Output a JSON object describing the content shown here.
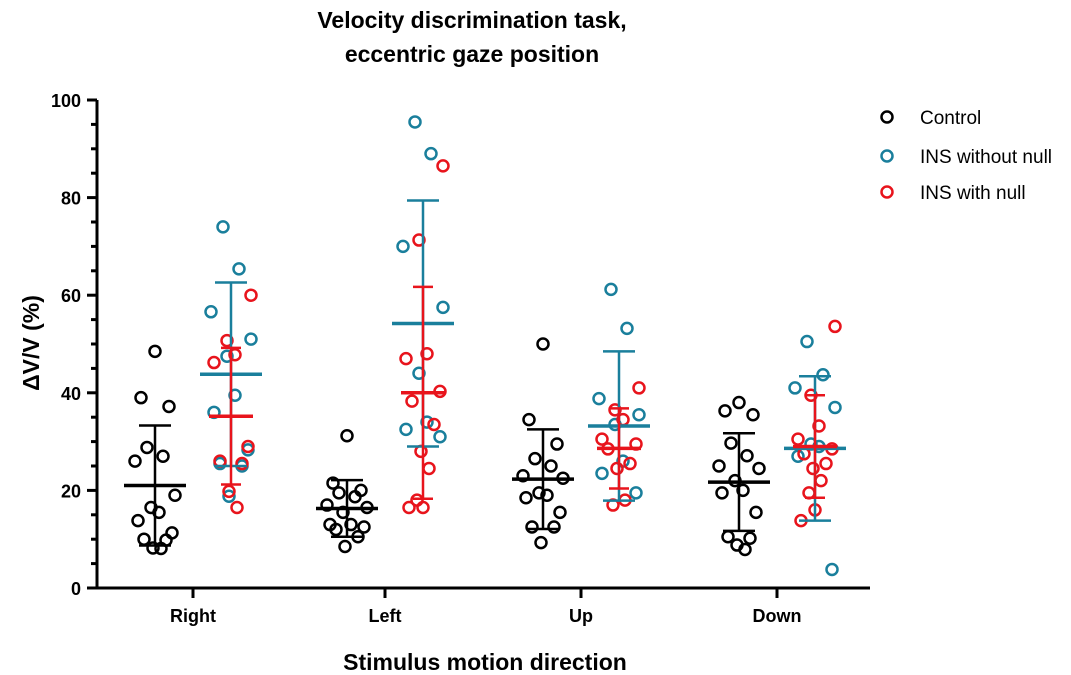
{
  "chart_data": {
    "type": "scatter",
    "title_line1": "Velocity discrimination task,",
    "title_line2": "eccentric gaze position",
    "xlabel": "Stimulus motion direction",
    "ylabel": "ΔV/V (%)",
    "ylim": [
      0,
      100
    ],
    "yticks": [
      "0",
      "20",
      "40",
      "60",
      "80",
      "100"
    ],
    "categories": [
      "Right",
      "Left",
      "Up",
      "Down"
    ],
    "legend_position": "top-right",
    "series": [
      {
        "name": "Control",
        "color": "#000000",
        "points": [
          [
            48.5,
            39,
            37.2,
            28.8,
            27,
            26,
            19,
            16.5,
            15.5,
            13.8,
            11.3,
            10,
            9.8,
            8.2,
            8.1
          ],
          [
            31.2,
            21.5,
            20,
            19.5,
            18.7,
            17,
            16.5,
            15.5,
            13,
            13,
            12.5,
            12,
            10.5,
            8.5
          ],
          [
            50,
            34.5,
            29.5,
            26.5,
            25,
            23,
            22.5,
            19.5,
            19,
            18.5,
            15.5,
            12.5,
            12.5,
            9.3
          ],
          [
            38,
            36.3,
            35.5,
            29.7,
            27.1,
            25,
            24.5,
            22,
            20,
            19.5,
            15.5,
            10.5,
            10.2,
            8.8,
            7.9
          ]
        ],
        "mean": [
          21,
          16.3,
          22.3,
          21.7
        ],
        "sd": [
          12.3,
          5.8,
          10.2,
          10
        ]
      },
      {
        "name": "INS without null",
        "color": "#1a7f9c",
        "points": [
          [
            74,
            65.4,
            56.6,
            51,
            47.5,
            39.5,
            36,
            28.3,
            25.5,
            25,
            18.8
          ],
          [
            95.5,
            89,
            70,
            57.5,
            44,
            34,
            32.5,
            31
          ],
          [
            61.2,
            53.2,
            38.8,
            35.5,
            33.5,
            26,
            23.5,
            19.5
          ],
          [
            50.5,
            43.7,
            41,
            37,
            29.5,
            29,
            27,
            3.8
          ]
        ],
        "mean": [
          43.8,
          54.2,
          33.2,
          28.6
        ],
        "sd": [
          18.8,
          25.2,
          15.3,
          14.8
        ]
      },
      {
        "name": "INS with null",
        "color": "#e8141c",
        "points": [
          [
            60,
            50.7,
            47.8,
            46.2,
            29,
            26,
            25.5,
            19.8,
            16.5
          ],
          [
            86.5,
            71.3,
            48,
            47,
            40.3,
            38.3,
            33.5,
            28,
            24.5,
            18,
            16.5,
            16.5
          ],
          [
            41,
            36.5,
            34.5,
            30.5,
            29.5,
            28.5,
            25.5,
            24.5,
            18,
            17
          ],
          [
            53.6,
            39.5,
            33.2,
            30.5,
            28.5,
            27.5,
            25.5,
            24.5,
            22,
            19.5,
            16,
            13.8
          ]
        ],
        "mean": [
          35.2,
          40,
          28.6,
          29
        ],
        "sd": [
          14,
          21.7,
          8.2,
          10.5
        ]
      }
    ]
  }
}
